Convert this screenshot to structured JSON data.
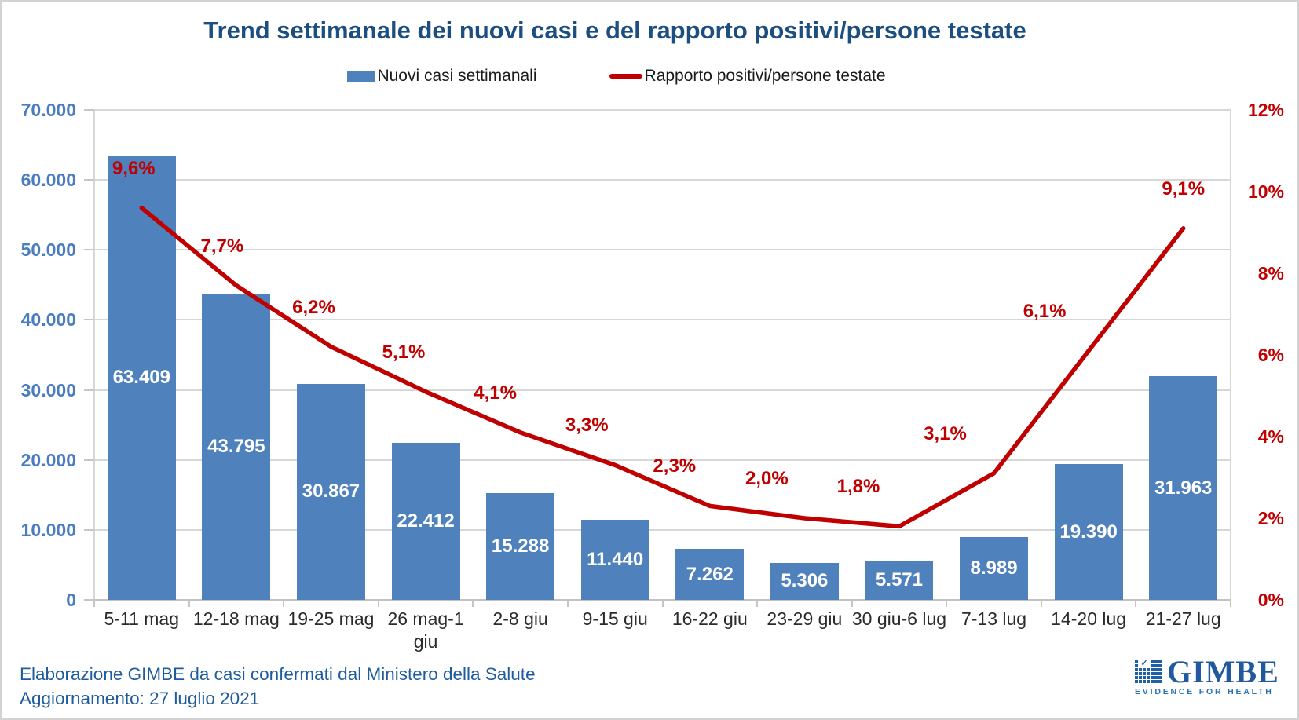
{
  "title": "Trend settimanale dei nuovi casi e del rapporto positivi/persone testate",
  "footer": {
    "line1": "Elaborazione GIMBE da casi confermati dal Ministero della Salute",
    "line2": "Aggiornamento: 27 luglio 2021"
  },
  "logo": {
    "name": "GIMBE",
    "tagline": "EVIDENCE FOR HEALTH",
    "icon": "checkered-grid-with-check-icon",
    "brand_color": "#20599e"
  },
  "chart_data": {
    "type": "bar+line",
    "title": "Trend settimanale dei nuovi casi e del rapporto positivi/persone testate",
    "categories": [
      "5-11 mag",
      "12-18 mag",
      "19-25 mag",
      "26 mag-1\ngiu",
      "2-8 giu",
      "9-15 giu",
      "16-22 giu",
      "23-29 giu",
      "30 giu-6 lug",
      "7-13 lug",
      "14-20 lug",
      "21-27 lug"
    ],
    "series": [
      {
        "name": "Nuovi casi settimanali",
        "type": "bar",
        "axis": "left",
        "color": "#4f81bd",
        "values": [
          63409,
          43795,
          30867,
          22412,
          15288,
          11440,
          7262,
          5306,
          5571,
          8989,
          19390,
          31963
        ],
        "labels": [
          "63.409",
          "43.795",
          "30.867",
          "22.412",
          "15.288",
          "11.440",
          "7.262",
          "5.306",
          "5.571",
          "8.989",
          "19.390",
          "31.963"
        ]
      },
      {
        "name": "Rapporto positivi/persone testate",
        "type": "line",
        "axis": "right",
        "color": "#c00000",
        "values": [
          9.6,
          7.7,
          6.2,
          5.1,
          4.1,
          3.3,
          2.3,
          2.0,
          1.8,
          3.1,
          6.1,
          9.1
        ],
        "labels": [
          "9,6%",
          "7,7%",
          "6,2%",
          "5,1%",
          "4,1%",
          "3,3%",
          "2,3%",
          "2,0%",
          "1,8%",
          "3,1%",
          "6,1%",
          "9,1%"
        ]
      }
    ],
    "left_axis": {
      "min": 0,
      "max": 70000,
      "step": 10000,
      "tick_labels": [
        "0",
        "10.000",
        "20.000",
        "30.000",
        "40.000",
        "50.000",
        "60.000",
        "70.000"
      ]
    },
    "right_axis": {
      "min": 0,
      "max": 12,
      "step": 2,
      "tick_labels": [
        "0%",
        "2%",
        "4%",
        "6%",
        "8%",
        "10%",
        "12%"
      ]
    },
    "grid": true,
    "legend_position": "top"
  }
}
